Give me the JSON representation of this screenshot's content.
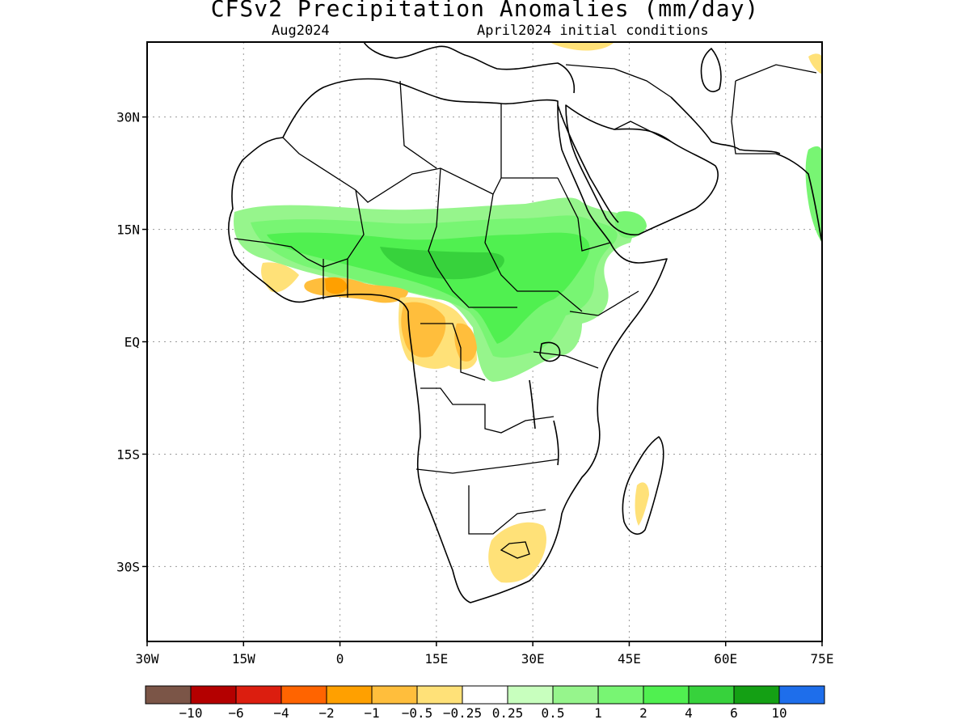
{
  "title": "CFSv2 Precipitation Anomalies (mm/day)",
  "subtitle_left": "Aug2024",
  "subtitle_right": "April2024 initial conditions",
  "map": {
    "lon_range": [
      -30,
      75
    ],
    "lat_range": [
      -40,
      40
    ],
    "lat_ticks": [
      {
        "lat": 30,
        "label": "30N"
      },
      {
        "lat": 15,
        "label": "15N"
      },
      {
        "lat": 0,
        "label": "EQ"
      },
      {
        "lat": -15,
        "label": "15S"
      },
      {
        "lat": -30,
        "label": "30S"
      }
    ],
    "lon_ticks": [
      {
        "lon": -30,
        "label": "30W"
      },
      {
        "lon": -15,
        "label": "15W"
      },
      {
        "lon": 0,
        "label": "0"
      },
      {
        "lon": 15,
        "label": "15E"
      },
      {
        "lon": 30,
        "label": "30E"
      },
      {
        "lon": 45,
        "label": "45E"
      },
      {
        "lon": 60,
        "label": "60E"
      },
      {
        "lon": 75,
        "label": "75E"
      }
    ]
  },
  "colorbar": {
    "colors": [
      "#7b5547",
      "#b40000",
      "#dc1e0f",
      "#ff6400",
      "#ffa000",
      "#ffbe3c",
      "#ffe178",
      "#ffffff",
      "#c8ffbe",
      "#96f58c",
      "#78f573",
      "#50f050",
      "#37d23c",
      "#14a014",
      "#1e6eeb"
    ],
    "labels": [
      "−10",
      "−6",
      "−4",
      "−2",
      "−1",
      "−0.5",
      "−0.25",
      "0.25",
      "0.5",
      "1",
      "2",
      "4",
      "6",
      "10"
    ]
  }
}
